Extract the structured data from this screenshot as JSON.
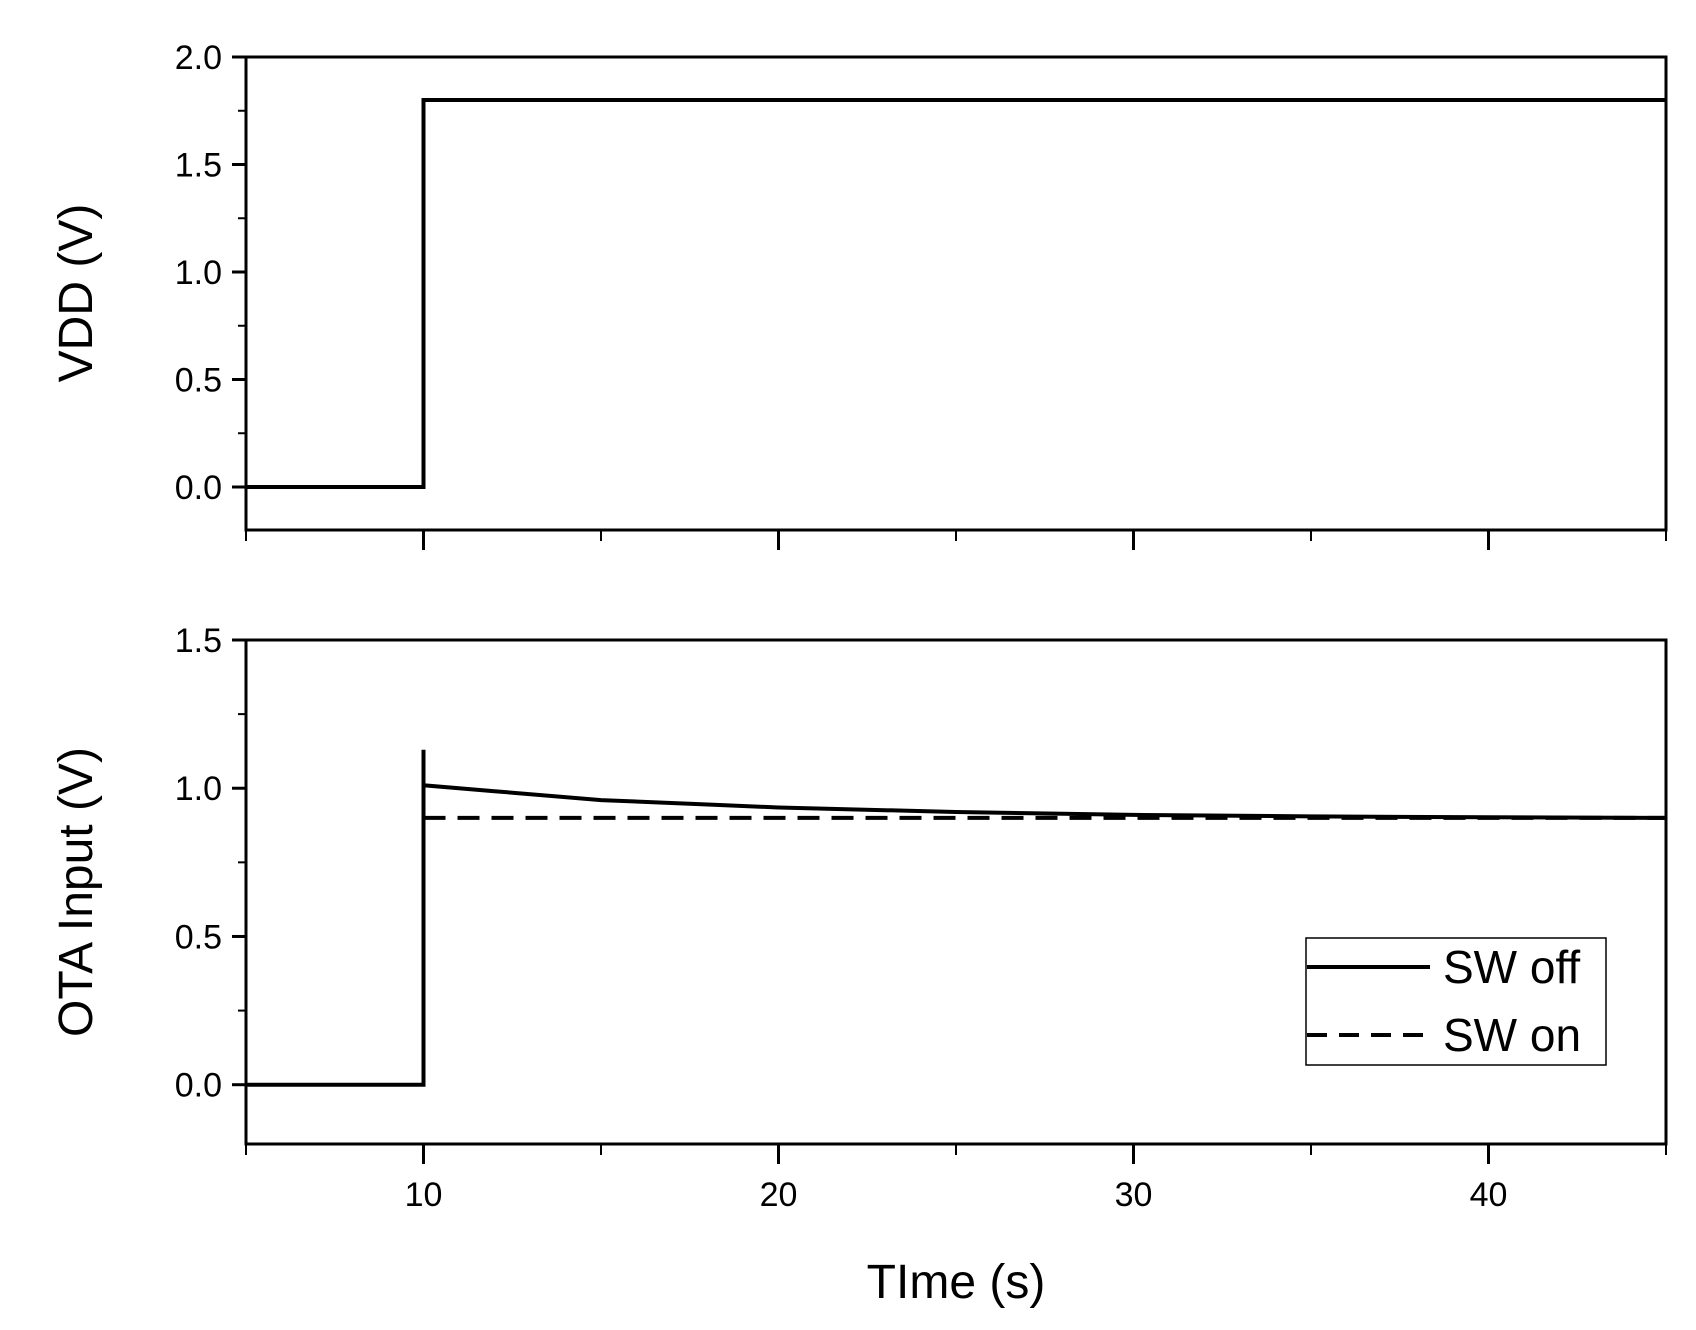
{
  "chart_data": [
    {
      "type": "line",
      "ylabel": "VDD (V)",
      "xlabel": "",
      "xlim": [
        5,
        45
      ],
      "ylim": [
        -0.2,
        2.0
      ],
      "yticks": [
        0.0,
        0.5,
        1.0,
        1.5,
        2.0
      ],
      "ytick_labels": [
        "0.0",
        "0.5",
        "1.0",
        "1.5",
        "2.0"
      ],
      "xticks": [
        10,
        20,
        30,
        40
      ],
      "xtick_labels": [],
      "grid": false,
      "series": [
        {
          "style": "solid",
          "x": [
            5,
            10,
            10,
            45
          ],
          "y": [
            0.0,
            0.0,
            1.8,
            1.8
          ]
        }
      ]
    },
    {
      "type": "line",
      "ylabel": "OTA Input (V)",
      "xlabel": "TIme (s)",
      "xlim": [
        5,
        45
      ],
      "ylim": [
        -0.2,
        1.5
      ],
      "yticks": [
        0.0,
        0.5,
        1.0,
        1.5
      ],
      "ytick_labels": [
        "0.0",
        "0.5",
        "1.0",
        "1.5"
      ],
      "xticks": [
        10,
        20,
        30,
        40
      ],
      "xtick_labels": [
        "10",
        "20",
        "30",
        "40"
      ],
      "grid": false,
      "legend": "bottom-right",
      "series": [
        {
          "name": "SW off",
          "style": "solid",
          "x": [
            5,
            10,
            10,
            10,
            12,
            15,
            18,
            20,
            25,
            30,
            35,
            40,
            45
          ],
          "y": [
            0.0,
            0.0,
            1.13,
            1.01,
            0.99,
            0.96,
            0.945,
            0.935,
            0.92,
            0.91,
            0.905,
            0.902,
            0.9
          ]
        },
        {
          "name": "SW on",
          "style": "dashed",
          "x": [
            10,
            45
          ],
          "y": [
            0.9,
            0.9
          ]
        }
      ]
    }
  ]
}
